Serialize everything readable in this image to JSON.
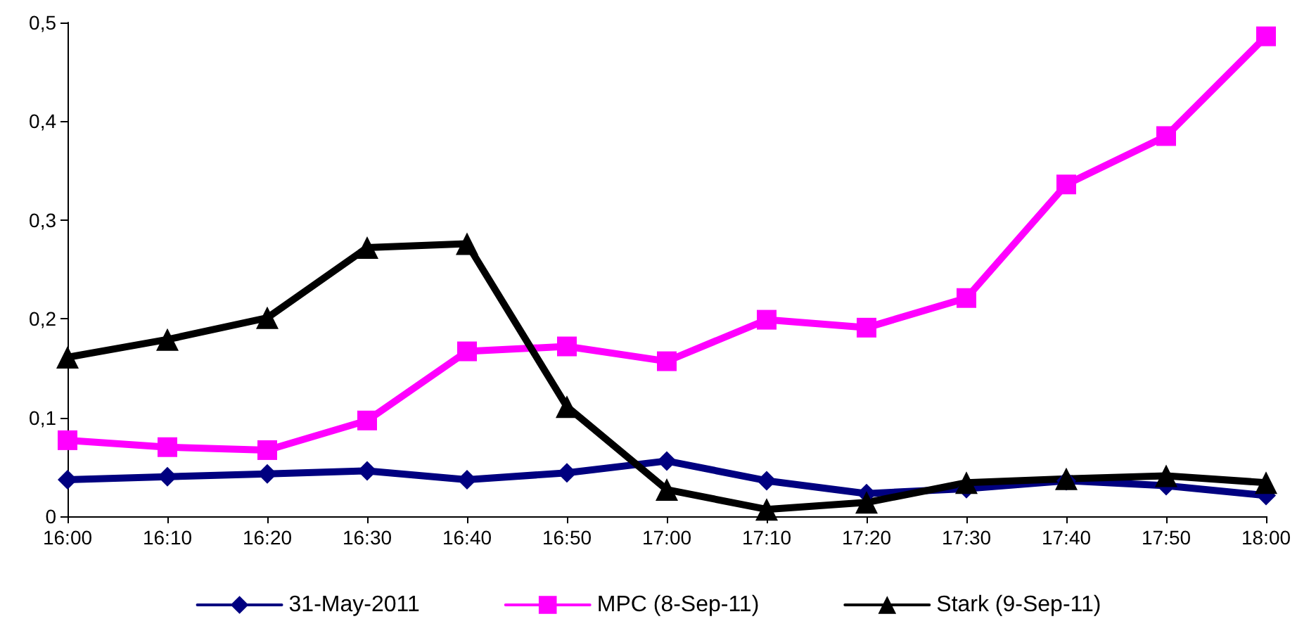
{
  "chart_data": {
    "type": "line",
    "categories": [
      "16:00",
      "16:10",
      "16:20",
      "16:30",
      "16:40",
      "16:50",
      "17:00",
      "17:10",
      "17:20",
      "17:30",
      "17:40",
      "17:50",
      "18:00"
    ],
    "series": [
      {
        "name": "31-May-2011",
        "color": "#000080",
        "marker": "diamond",
        "values": [
          0.037,
          0.04,
          0.043,
          0.046,
          0.037,
          0.044,
          0.056,
          0.036,
          0.023,
          0.028,
          0.036,
          0.031,
          0.021
        ]
      },
      {
        "name": "MPC (8-Sep-11)",
        "color": "#ff00ff",
        "marker": "square",
        "values": [
          0.077,
          0.07,
          0.067,
          0.097,
          0.167,
          0.172,
          0.157,
          0.199,
          0.191,
          0.221,
          0.336,
          0.385,
          0.486
        ]
      },
      {
        "name": "Stark (9-Sep-11)",
        "color": "#000000",
        "marker": "triangle",
        "values": [
          0.161,
          0.179,
          0.201,
          0.272,
          0.276,
          0.111,
          0.027,
          0.007,
          0.014,
          0.034,
          0.038,
          0.041,
          0.034
        ]
      }
    ],
    "ylim": [
      0,
      0.5
    ],
    "yticks": [
      0,
      {
        "value": 0.1,
        "label": "0,1"
      },
      {
        "value": 0.2,
        "label": "0,2"
      },
      {
        "value": 0.3,
        "label": "0,3"
      },
      {
        "value": 0.4,
        "label": "0,4"
      },
      {
        "value": 0.5,
        "label": "0,5"
      }
    ],
    "grid": false,
    "legend": "bottom",
    "line_style": "solid"
  }
}
